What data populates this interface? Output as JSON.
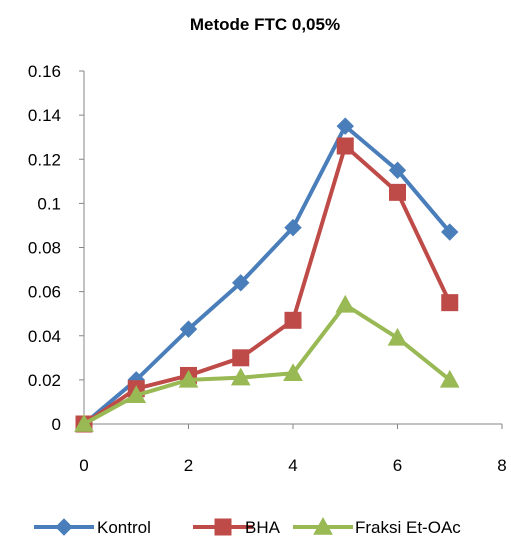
{
  "chart_data": {
    "type": "line",
    "title": "Metode FTC 0,05%",
    "xlabel": "",
    "ylabel": "",
    "xlim": [
      0,
      8
    ],
    "ylim": [
      0,
      0.16
    ],
    "x_ticks": [
      "0",
      "2",
      "4",
      "6",
      "8"
    ],
    "y_ticks": [
      "0",
      "0.02",
      "0.04",
      "0.06",
      "0.08",
      "0.1",
      "0.12",
      "0.14",
      "0.16"
    ],
    "grid": false,
    "legend_position": "bottom",
    "series": [
      {
        "name": "Kontrol",
        "marker": "diamond",
        "color": "#4a7ebb",
        "x": [
          0,
          1,
          2,
          3,
          4,
          5,
          6,
          7
        ],
        "y": [
          0,
          0.02,
          0.043,
          0.064,
          0.089,
          0.135,
          0.115,
          0.087
        ]
      },
      {
        "name": "BHA",
        "marker": "square",
        "color": "#be4b48",
        "x": [
          0,
          1,
          2,
          3,
          4,
          5,
          6,
          7
        ],
        "y": [
          0,
          0.016,
          0.022,
          0.03,
          0.047,
          0.126,
          0.105,
          0.055
        ]
      },
      {
        "name": "Fraksi Et-OAc",
        "marker": "triangle",
        "color": "#98b954",
        "x": [
          0,
          1,
          2,
          3,
          4,
          5,
          6,
          7
        ],
        "y": [
          0,
          0.013,
          0.02,
          0.021,
          0.023,
          0.054,
          0.039,
          0.02
        ]
      }
    ]
  }
}
